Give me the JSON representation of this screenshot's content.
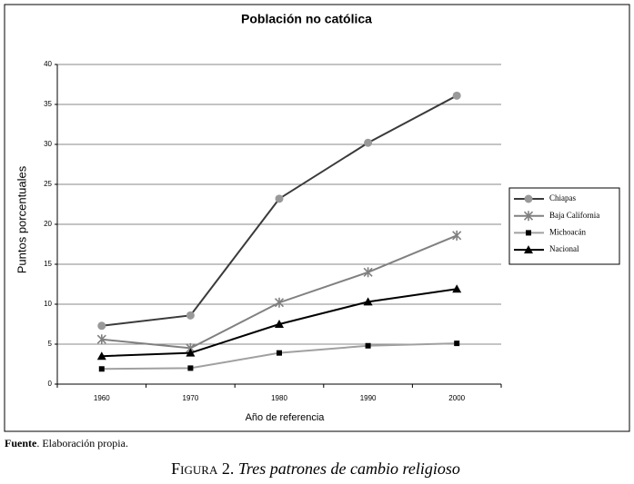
{
  "chart_data": {
    "type": "line",
    "title": "Población no católica",
    "x_label": "Año de referencia",
    "y_label": "Puntos porcentuales",
    "categories": [
      "1960",
      "1970",
      "1980",
      "1990",
      "2000"
    ],
    "series": [
      {
        "name": "Chiapas",
        "color": "#3a3a3a",
        "marker": "circle",
        "marker_color": "#999999",
        "values": [
          7.3,
          8.6,
          23.2,
          30.2,
          36.1
        ]
      },
      {
        "name": "Baja California",
        "color": "#808080",
        "marker": "asterisk",
        "marker_color": "#808080",
        "values": [
          5.6,
          4.5,
          10.2,
          14.0,
          18.6
        ]
      },
      {
        "name": "Michoacán",
        "color": "#a0a0a0",
        "marker": "square",
        "marker_color": "#000000",
        "values": [
          1.9,
          2.0,
          3.9,
          4.8,
          5.1
        ]
      },
      {
        "name": "Nacional",
        "color": "#000000",
        "marker": "triangle",
        "marker_color": "#000000",
        "values": [
          3.5,
          3.9,
          7.5,
          10.3,
          11.9
        ]
      }
    ],
    "ylim": [
      0,
      40
    ],
    "yticks": [
      0,
      5,
      10,
      15,
      20,
      25,
      30,
      35,
      40
    ],
    "grid": true,
    "legend": "right"
  },
  "source_label": "Fuente",
  "source_text": ". Elaboración propia.",
  "figure_label": "Figura 2.",
  "figure_title": "Tres patrones de cambio religioso"
}
